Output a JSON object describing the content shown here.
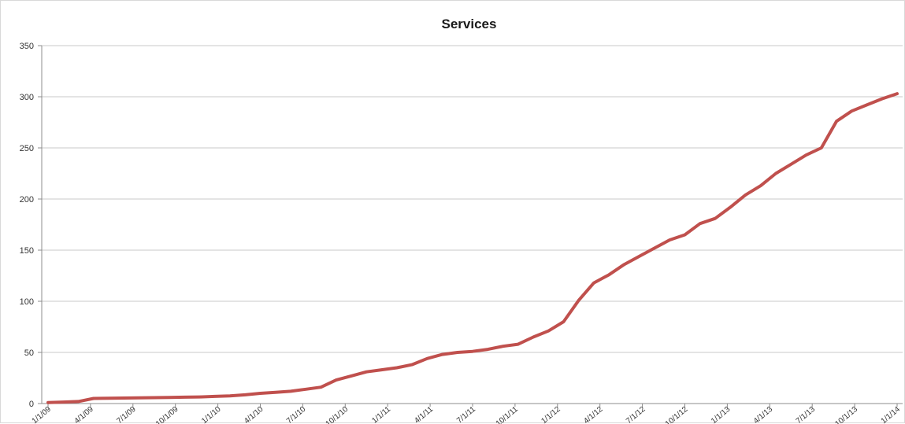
{
  "chart_data": {
    "type": "line",
    "title": "Services",
    "xlabel": "",
    "ylabel": "",
    "ylim": [
      0,
      350
    ],
    "yticks": [
      0,
      50,
      100,
      150,
      200,
      250,
      300,
      350
    ],
    "grid": true,
    "legend": "none",
    "colors": {
      "line": "#c0504d",
      "grid": "#c8c8c8",
      "axis": "#8c8c8c"
    },
    "x_tick_labels": [
      "1/1/09",
      "4/1/09",
      "7/1/09",
      "10/1/09",
      "1/1/10",
      "4/1/10",
      "7/1/10",
      "10/1/10",
      "1/1/11",
      "4/1/11",
      "7/1/11",
      "10/1/11",
      "1/1/12",
      "4/1/12",
      "7/1/12",
      "10/1/12",
      "1/1/13",
      "4/1/13",
      "7/1/13",
      "10/1/13",
      "1/1/14"
    ],
    "series": [
      {
        "values": [
          1,
          1.5,
          2,
          5,
          5.2,
          5.4,
          5.6,
          5.8,
          6,
          6.2,
          6.5,
          7,
          7.5,
          8.5,
          10,
          11,
          12,
          14,
          16,
          23,
          27,
          31,
          33,
          35,
          38,
          44,
          48,
          50,
          51,
          53,
          56,
          58,
          65,
          71,
          80,
          101,
          118,
          126,
          136,
          144,
          152,
          160,
          165,
          176,
          181,
          192,
          204,
          213,
          225,
          234,
          243,
          250,
          276,
          286,
          292,
          298,
          303
        ]
      }
    ]
  }
}
